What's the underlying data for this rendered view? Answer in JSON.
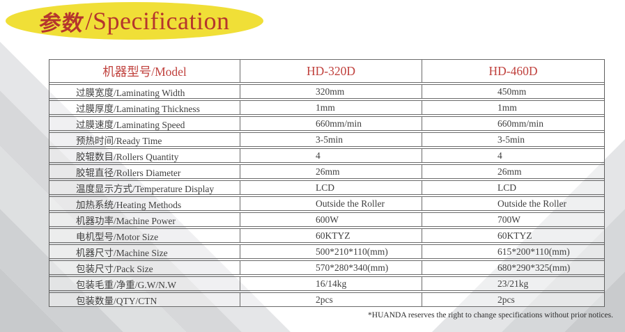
{
  "title": {
    "cn": "参数",
    "en": "/Specification"
  },
  "colors": {
    "accent_red": "#b5352d",
    "header_red": "#c0413d",
    "ellipse_yellow": "#f0df37",
    "body_text": "#3f3f3f",
    "border_gray": "#6a6a6a"
  },
  "table": {
    "header": {
      "model_label": "机器型号/Model",
      "col1": "HD-320D",
      "col2": "HD-460D"
    },
    "rows": [
      {
        "label": "过膜宽度/Laminating Width",
        "hd320d": "320mm",
        "hd460d": "450mm"
      },
      {
        "label": "过膜厚度/Laminating Thickness",
        "hd320d": "1mm",
        "hd460d": "1mm"
      },
      {
        "label": "过膜速度/Laminating Speed",
        "hd320d": "660mm/min",
        "hd460d": "660mm/min"
      },
      {
        "label": "预热时间/Ready Time",
        "hd320d": "3-5min",
        "hd460d": "3-5min"
      },
      {
        "label": "胶辊数目/Rollers Quantity",
        "hd320d": "4",
        "hd460d": "4"
      },
      {
        "label": "胶辊直径/Rollers Diameter",
        "hd320d": "26mm",
        "hd460d": "26mm"
      },
      {
        "label": "温度显示方式/Temperature Display",
        "hd320d": "LCD",
        "hd460d": "LCD"
      },
      {
        "label": "加热系统/Heating Methods",
        "hd320d": "Outside the Roller",
        "hd460d": "Outside the Roller"
      },
      {
        "label": "机器功率/Machine Power",
        "hd320d": "600W",
        "hd460d": "700W"
      },
      {
        "label": "电机型号/Motor Size",
        "hd320d": "60KTYZ",
        "hd460d": "60KTYZ"
      },
      {
        "label": "机器尺寸/Machine Size",
        "hd320d": "500*210*110(mm)",
        "hd460d": "615*200*110(mm)"
      },
      {
        "label": "包装尺寸/Pack Size",
        "hd320d": "570*280*340(mm)",
        "hd460d": "680*290*325(mm)"
      },
      {
        "label": "包装毛重/净重/G.W/N.W",
        "hd320d": "16/14kg",
        "hd460d": "23/21kg"
      },
      {
        "label": "包装数量/QTY/CTN",
        "hd320d": "2pcs",
        "hd460d": "2pcs"
      }
    ]
  },
  "footnote": "*HUANDA reserves the right to change specifications without prior notices."
}
